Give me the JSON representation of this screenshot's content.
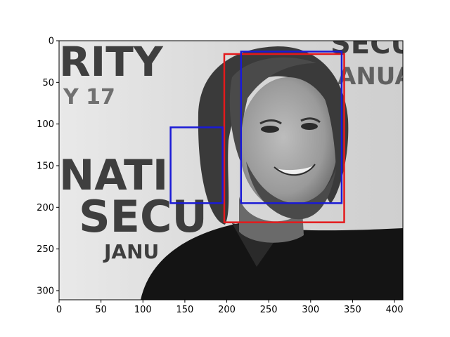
{
  "figure": {
    "background": "#ffffff",
    "photo_subject": "grayscale portrait of a smiling man with shoulder-length hair and beard, dark collared shirt, in front of a white banner with large black lettering",
    "banner_text_fragments": [
      "RITY",
      "Y 17",
      "NATI",
      "SECU",
      "JANU",
      "SECU",
      "ANUA"
    ]
  },
  "axes": {
    "x": {
      "range": [
        0,
        410
      ],
      "ticks": [
        0,
        50,
        100,
        150,
        200,
        250,
        300,
        350,
        400
      ]
    },
    "y": {
      "range": [
        311,
        0
      ],
      "inverted": true,
      "ticks": [
        0,
        50,
        100,
        150,
        200,
        250,
        300
      ]
    }
  },
  "boxes": [
    {
      "name": "red-detection-box",
      "color": "#e41a1c",
      "x0": 197,
      "y0": 16,
      "x1": 340,
      "y1": 218
    },
    {
      "name": "blue-detection-box-face",
      "color": "#1a1ad6",
      "x0": 217,
      "y0": 13,
      "x1": 337,
      "y1": 195
    },
    {
      "name": "blue-detection-box-small",
      "color": "#1a1ad6",
      "x0": 133,
      "y0": 104,
      "x1": 195,
      "y1": 195
    }
  ]
}
